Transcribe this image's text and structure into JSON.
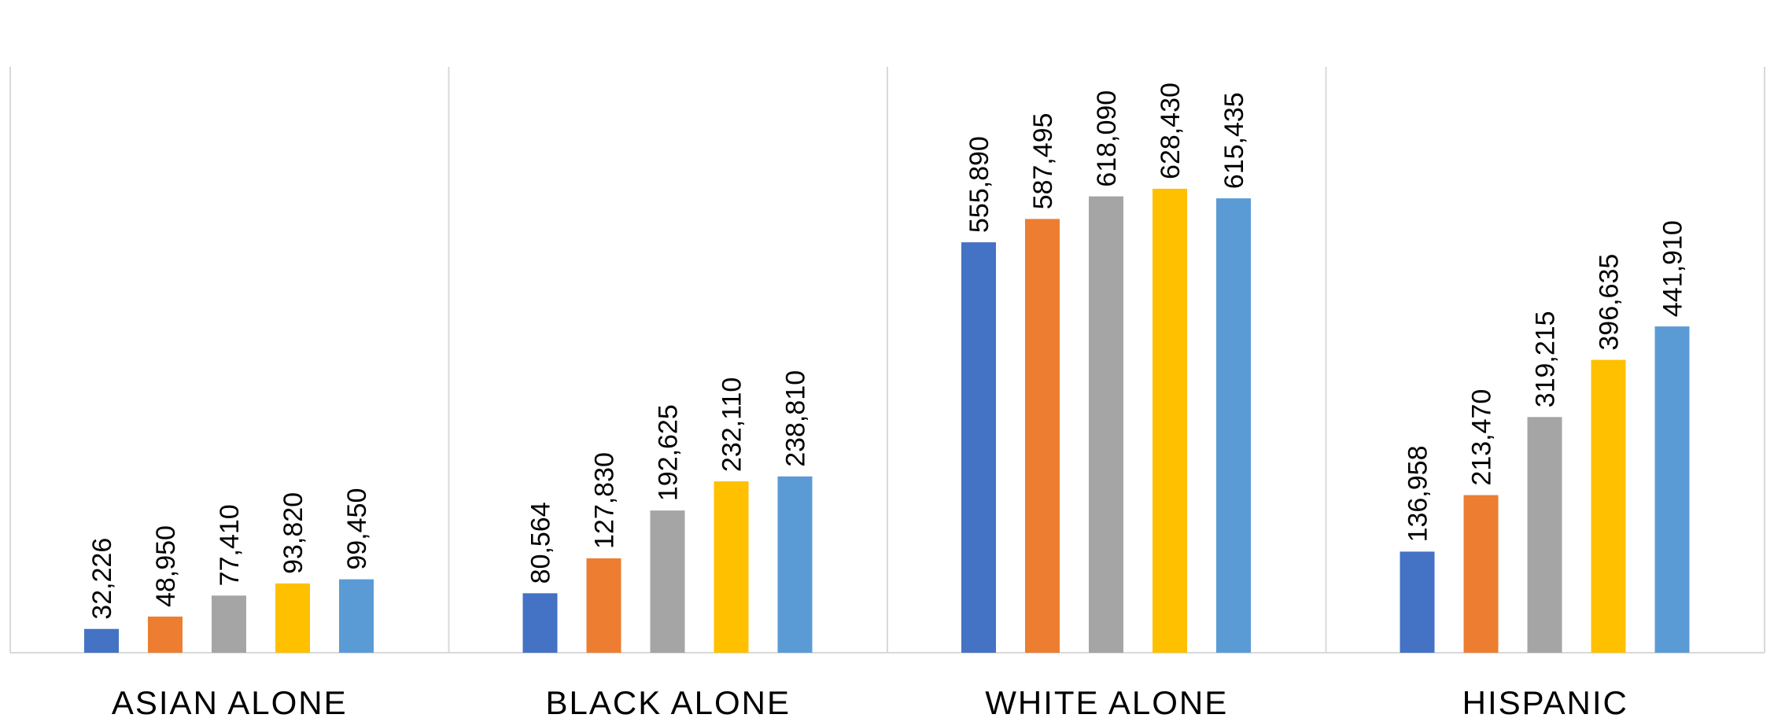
{
  "chart_data": {
    "type": "bar",
    "title": "",
    "xlabel": "",
    "ylabel": "",
    "ylim": [
      0,
      650000
    ],
    "grid": "vertical category separators",
    "legend": "none",
    "categories": [
      "ASIAN ALONE",
      "BLACK ALONE",
      "WHITE ALONE",
      "HISPANIC"
    ],
    "series": [
      {
        "color": "#4472C4",
        "values": [
          32226,
          80564,
          555890,
          136958
        ],
        "labels": [
          "32,226",
          "80,564",
          "555,890",
          "136,958"
        ]
      },
      {
        "color": "#ED7D31",
        "values": [
          48950,
          127830,
          587495,
          213470
        ],
        "labels": [
          "48,950",
          "127,830",
          "587,495",
          "213,470"
        ]
      },
      {
        "color": "#A5A5A5",
        "values": [
          77410,
          192625,
          618090,
          319215
        ],
        "labels": [
          "77,410",
          "192,625",
          "618,090",
          "319,215"
        ]
      },
      {
        "color": "#FFC000",
        "values": [
          93820,
          232110,
          628430,
          396635
        ],
        "labels": [
          "93,820",
          "232,110",
          "628,430",
          "396,635"
        ]
      },
      {
        "color": "#5B9BD5",
        "values": [
          99450,
          238810,
          615435,
          441910
        ],
        "labels": [
          "99,450",
          "238,810",
          "615,435",
          "441,910"
        ]
      }
    ]
  }
}
